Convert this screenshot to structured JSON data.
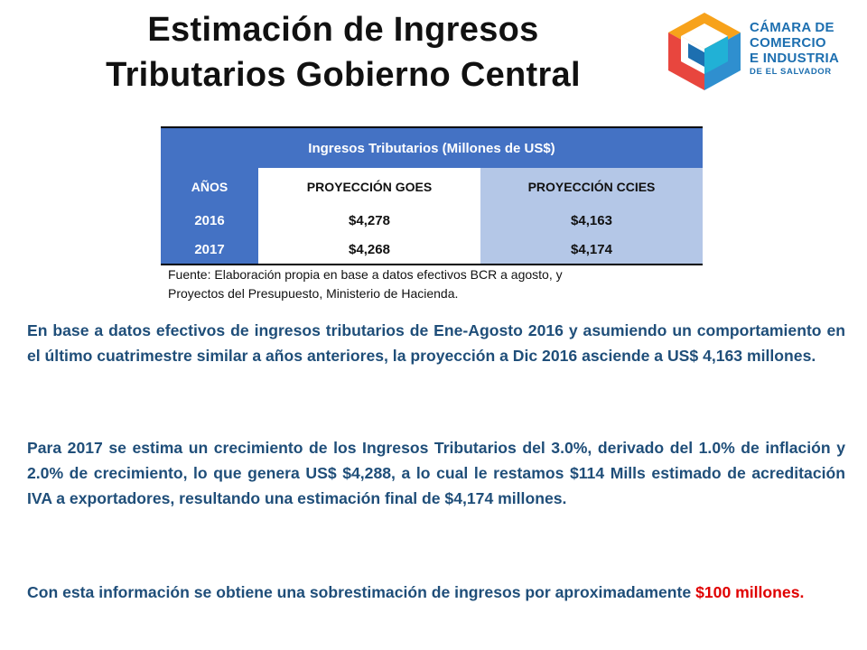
{
  "title": {
    "line1": "Estimación de Ingresos",
    "line2": "Tributarios Gobierno Central"
  },
  "logo": {
    "line1": "CÁMARA DE",
    "line2": "COMERCIO",
    "line3": "E INDUSTRIA",
    "line4": "DE EL SALVADOR",
    "colors": [
      "#f7a21b",
      "#e8463e",
      "#2f8fcf",
      "#1d6fb0",
      "#21b1d6"
    ]
  },
  "table": {
    "caption": "Ingresos Tributarios (Millones de US$)",
    "headers": [
      "AÑOS",
      "PROYECCIÓN GOES",
      "PROYECCIÓN CCIES"
    ],
    "rows": [
      [
        "2016",
        "$4,278",
        "$4,163"
      ],
      [
        "2017",
        "$4,268",
        "$4,174"
      ]
    ],
    "colors": {
      "header": "#4472c4",
      "ccies_column": "#b4c7e7"
    }
  },
  "source": {
    "line1": "Fuente: Elaboración propia en base a datos efectivos BCR a agosto, y",
    "line2": "Proyectos del Presupuesto, Ministerio de Hacienda."
  },
  "paragraphs": {
    "p1": "En base a datos efectivos de ingresos tributarios de Ene-Agosto 2016  y asumiendo un comportamiento en el último cuatrimestre similar a años anteriores, la proyección a Dic 2016 asciende a US$ 4,163 millones.",
    "p2": "Para 2017 se estima un crecimiento de los Ingresos Tributarios del 3.0%, derivado del 1.0% de inflación y 2.0% de crecimiento, lo que genera US$ $4,288, a lo cual le restamos $114 Mills estimado de acreditación IVA a exportadores, resultando una estimación final de $4,174 millones.",
    "p3_start": "Con esta información se obtiene una sobrestimación de ingresos por aproximadamente ",
    "p3_highlight": "$100 millones.",
    "text_color": "#1f4e79",
    "highlight_color": "#e00000"
  }
}
